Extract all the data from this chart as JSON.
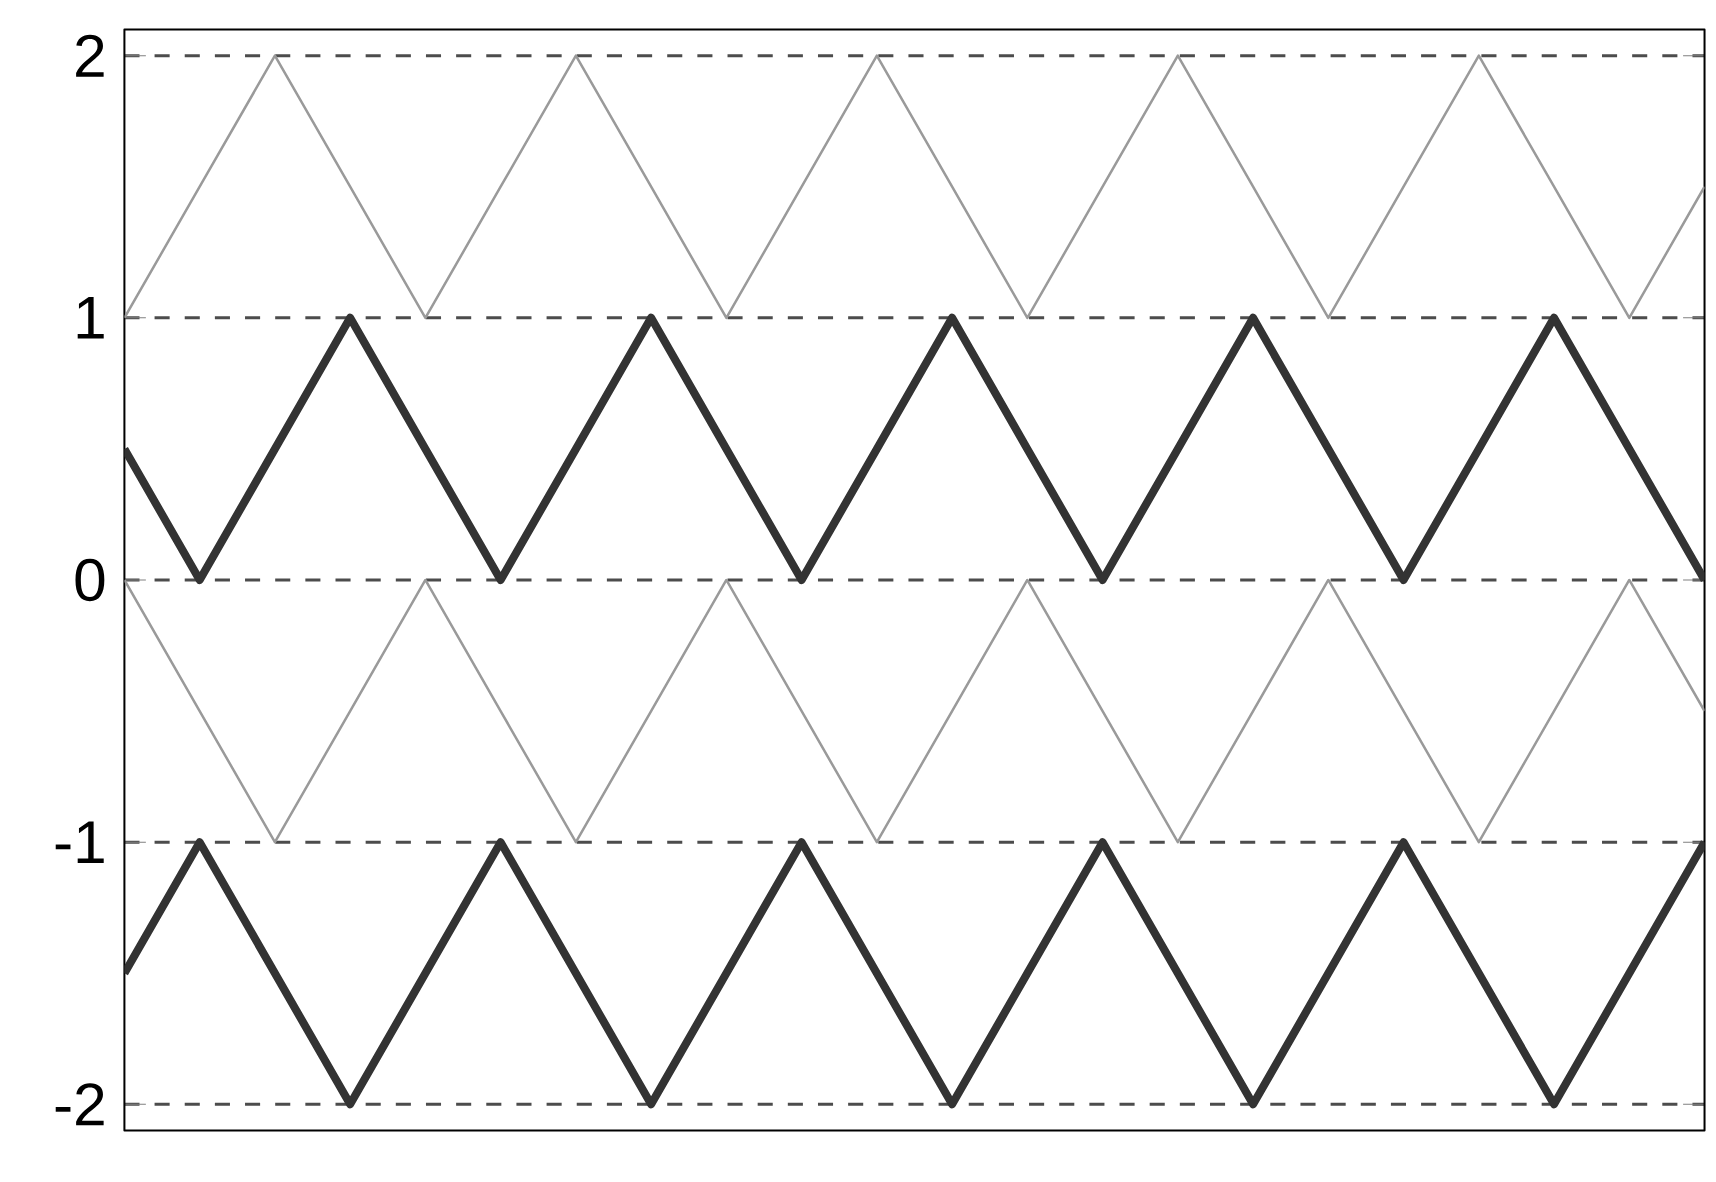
{
  "chart_data": {
    "type": "line",
    "categories": [
      null,
      null,
      null,
      null,
      null,
      null,
      null,
      null,
      null,
      null,
      null,
      null,
      null,
      null,
      null,
      null,
      null,
      null,
      null,
      null,
      null,
      null
    ],
    "series": [
      {
        "color": "#333333",
        "values": [
          0.5,
          0,
          0.5,
          1,
          0.5,
          0,
          0.5,
          1,
          0.5,
          0,
          0.5,
          1,
          0.5,
          0,
          0.5,
          1,
          0.5,
          0,
          0.5,
          1,
          0.5,
          0
        ]
      },
      {
        "color": "#9a9a9a",
        "values": [
          1,
          1.5,
          2,
          1.5,
          1,
          1.5,
          2,
          1.5,
          1,
          1.5,
          2,
          1.5,
          1,
          1.5,
          2,
          1.5,
          1,
          1.5,
          2,
          1.5,
          1,
          1.5
        ]
      },
      {
        "color": "#9a9a9a",
        "values": [
          0,
          -0.5,
          -1,
          -0.5,
          0,
          -0.5,
          -1,
          -0.5,
          0,
          -0.5,
          -1,
          -0.5,
          0,
          -0.5,
          -1,
          -0.5,
          0,
          -0.5,
          -1,
          -0.5,
          0,
          -0.5
        ]
      },
      {
        "color": "#333333",
        "values": [
          -1.5,
          -1,
          -1.5,
          -2,
          -1.5,
          -1,
          -1.5,
          -2,
          -1.5,
          -1,
          -1.5,
          -2,
          -1.5,
          -1,
          -1.5,
          -2,
          -1.5,
          -1,
          -1.5,
          -2,
          -1.5,
          -1
        ]
      }
    ],
    "ylim": [
      -2.1,
      2.1
    ],
    "yticks": [
      -2,
      -1,
      0,
      1,
      2
    ],
    "grid": "y",
    "tick_labels": "y",
    "marker": "none",
    "line_style": "solid"
  }
}
